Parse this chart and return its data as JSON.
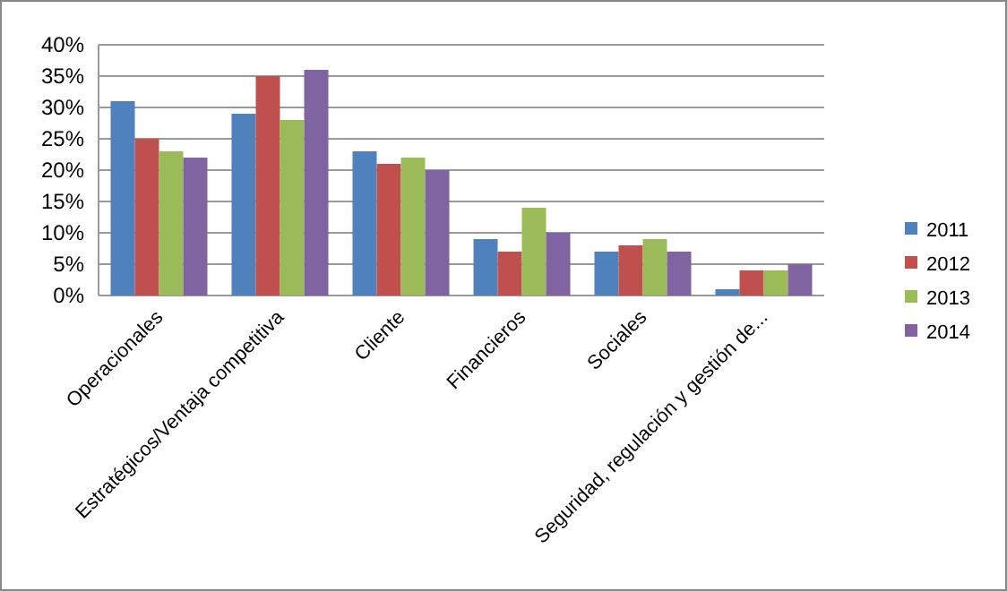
{
  "chart_data": {
    "type": "bar",
    "categories": [
      "Operacionales",
      "Estratégicos/Ventaja competitiva",
      "Cliente",
      "Financieros",
      "Sociales",
      "Seguridad, regulación y gestión de..."
    ],
    "series": [
      {
        "name": "2011",
        "color": "#4f81bd",
        "values": [
          31,
          29,
          23,
          9,
          7,
          1
        ]
      },
      {
        "name": "2012",
        "color": "#c0504d",
        "values": [
          25,
          35,
          21,
          7,
          8,
          4
        ]
      },
      {
        "name": "2013",
        "color": "#9bbb59",
        "values": [
          23,
          28,
          22,
          14,
          9,
          4
        ]
      },
      {
        "name": "2014",
        "color": "#8064a2",
        "values": [
          22,
          36,
          20,
          10,
          7,
          5
        ]
      }
    ],
    "ylim": [
      0,
      40
    ],
    "yticks": [
      {
        "value": 0,
        "label": "0%"
      },
      {
        "value": 5,
        "label": "5%"
      },
      {
        "value": 10,
        "label": "10%"
      },
      {
        "value": 15,
        "label": "15%"
      },
      {
        "value": 20,
        "label": "20%"
      },
      {
        "value": 25,
        "label": "25%"
      },
      {
        "value": 30,
        "label": "30%"
      },
      {
        "value": 35,
        "label": "35%"
      },
      {
        "value": 40,
        "label": "40%"
      }
    ],
    "grid": "y",
    "legend": "right"
  }
}
